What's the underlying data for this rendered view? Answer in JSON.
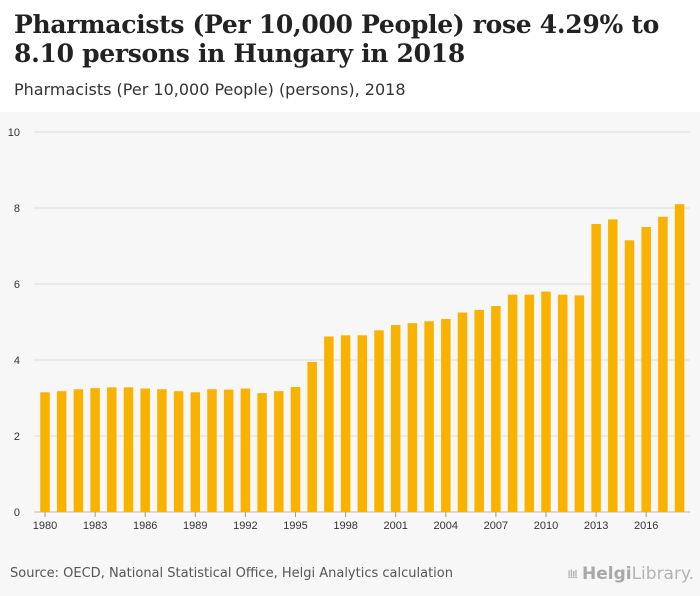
{
  "header": {
    "title": "Pharmacists (Per 10,000 People) rose 4.29% to 8.10 persons in Hungary in 2018",
    "subtitle": "Pharmacists (Per 10,000 People) (persons), 2018"
  },
  "footer": {
    "source": "Source: OECD, National Statistical Office, Helgi Analytics calculation",
    "logo_text_bold": "Helgi",
    "logo_text_rest": "Library."
  },
  "colors": {
    "bar": "#f9b200",
    "grid": "#dddddd",
    "axis_text": "#333333"
  },
  "chart_data": {
    "type": "bar",
    "categories": [
      1980,
      1981,
      1982,
      1983,
      1984,
      1985,
      1986,
      1987,
      1988,
      1989,
      1990,
      1991,
      1992,
      1993,
      1994,
      1995,
      1996,
      1997,
      1998,
      1999,
      2000,
      2001,
      2002,
      2003,
      2004,
      2005,
      2006,
      2007,
      2008,
      2009,
      2010,
      2011,
      2012,
      2013,
      2014,
      2015,
      2016,
      2017,
      2018
    ],
    "x_tick_labels": [
      "1980",
      "1983",
      "1986",
      "1989",
      "1992",
      "1995",
      "1998",
      "2001",
      "2004",
      "2007",
      "2010",
      "2013",
      "2016"
    ],
    "values": [
      3.15,
      3.18,
      3.23,
      3.26,
      3.28,
      3.28,
      3.25,
      3.23,
      3.18,
      3.15,
      3.23,
      3.22,
      3.25,
      3.13,
      3.18,
      3.29,
      3.95,
      4.62,
      4.65,
      4.65,
      4.78,
      4.92,
      4.97,
      5.02,
      5.08,
      5.25,
      5.32,
      5.42,
      5.72,
      5.72,
      5.8,
      5.72,
      5.7,
      7.58,
      7.7,
      7.15,
      7.5,
      7.77,
      8.1
    ],
    "ylim": [
      0,
      10
    ],
    "y_ticks": [
      0,
      2,
      4,
      6,
      8,
      10
    ],
    "title": "",
    "xlabel": "",
    "ylabel": "",
    "grid": true
  }
}
